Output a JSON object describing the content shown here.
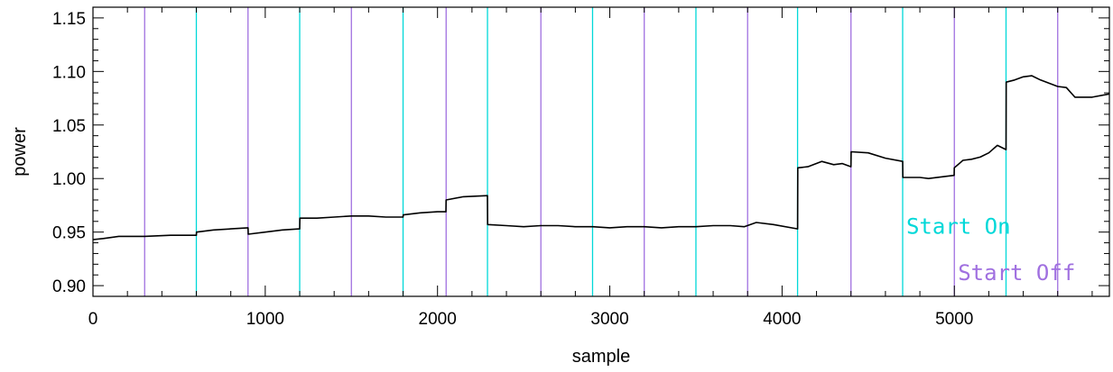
{
  "chart_data": {
    "type": "line",
    "xlabel": "sample",
    "ylabel": "power",
    "xlim": [
      0,
      5900
    ],
    "ylim": [
      0.89,
      1.16
    ],
    "xticks": [
      0,
      1000,
      2000,
      3000,
      4000,
      5000
    ],
    "xtick_labels": [
      "0",
      "1000",
      "2000",
      "3000",
      "4000",
      "5000"
    ],
    "yticks": [
      0.9,
      0.95,
      1.0,
      1.05,
      1.1,
      1.15
    ],
    "ytick_labels": [
      "0.90",
      "0.95",
      "1.00",
      "1.05",
      "1.10",
      "1.15"
    ],
    "grid": false,
    "series": [
      {
        "color": "#000000",
        "x": [
          0,
          60,
          150,
          300,
          450,
          600,
          601,
          700,
          800,
          900,
          901,
          1000,
          1100,
          1200,
          1201,
          1300,
          1400,
          1500,
          1600,
          1700,
          1800,
          1801,
          1900,
          2000,
          2049,
          2050,
          2150,
          2290,
          2291,
          2400,
          2500,
          2600,
          2700,
          2800,
          2900,
          3000,
          3100,
          3200,
          3300,
          3400,
          3500,
          3600,
          3700,
          3780,
          3850,
          3950,
          4090,
          4091,
          4150,
          4230,
          4300,
          4350,
          4400,
          4401,
          4500,
          4600,
          4700,
          4701,
          4800,
          4850,
          4950,
          4999,
          5000,
          5050,
          5100,
          5150,
          5200,
          5250,
          5300,
          5301,
          5350,
          5400,
          5450,
          5500,
          5550,
          5600,
          5650,
          5700,
          5800,
          5900
        ],
        "y": [
          0.943,
          0.944,
          0.946,
          0.946,
          0.947,
          0.947,
          0.95,
          0.952,
          0.953,
          0.954,
          0.948,
          0.95,
          0.952,
          0.953,
          0.963,
          0.963,
          0.964,
          0.965,
          0.965,
          0.964,
          0.964,
          0.966,
          0.968,
          0.969,
          0.969,
          0.98,
          0.983,
          0.984,
          0.957,
          0.956,
          0.955,
          0.956,
          0.956,
          0.955,
          0.955,
          0.954,
          0.955,
          0.955,
          0.954,
          0.955,
          0.955,
          0.956,
          0.956,
          0.955,
          0.959,
          0.957,
          0.953,
          1.01,
          1.011,
          1.016,
          1.013,
          1.014,
          1.011,
          1.025,
          1.024,
          1.019,
          1.016,
          1.001,
          1.001,
          1.0,
          1.002,
          1.003,
          1.01,
          1.017,
          1.018,
          1.02,
          1.024,
          1.031,
          1.027,
          1.09,
          1.092,
          1.095,
          1.096,
          1.092,
          1.089,
          1.086,
          1.085,
          1.076,
          1.076,
          1.079
        ]
      }
    ],
    "vertical_markers": {
      "on": {
        "label": "Start On",
        "color": "#00d8d8",
        "x": [
          600,
          1200,
          1800,
          2290,
          2900,
          3500,
          4090,
          4700,
          5300
        ]
      },
      "off": {
        "label": "Start Off",
        "color": "#a070e0",
        "x": [
          300,
          900,
          1500,
          2050,
          2600,
          3200,
          3800,
          4400,
          5000,
          5600
        ]
      }
    }
  }
}
